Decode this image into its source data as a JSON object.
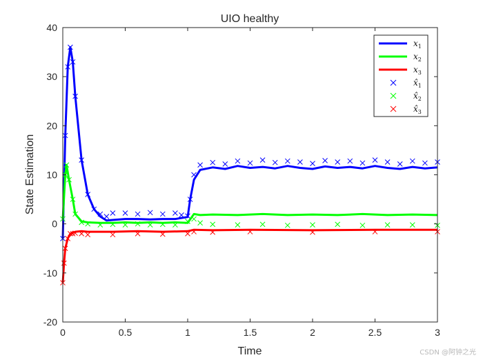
{
  "chart_data": {
    "type": "line",
    "title": "UIO healthy",
    "xlabel": "Time",
    "ylabel": "State Estimation",
    "xlim": [
      0,
      3
    ],
    "ylim": [
      -20,
      40
    ],
    "xticks": [
      0,
      0.5,
      1,
      1.5,
      2,
      2.5,
      3
    ],
    "xtick_labels": [
      "0",
      "0.5",
      "1",
      "1.5",
      "2",
      "2.5",
      "3"
    ],
    "yticks": [
      -20,
      -10,
      0,
      10,
      20,
      30,
      40
    ],
    "ytick_labels": [
      "-20",
      "-10",
      "0",
      "10",
      "20",
      "30",
      "40"
    ],
    "legend_location": "top-right",
    "series": [
      {
        "name": "x1",
        "label_base": "x",
        "label_sub": "1",
        "style": "line",
        "color": "#0000ff",
        "x": [
          0,
          0.02,
          0.04,
          0.06,
          0.08,
          0.1,
          0.15,
          0.2,
          0.25,
          0.3,
          0.35,
          0.4,
          0.5,
          0.6,
          0.7,
          0.8,
          0.9,
          0.95,
          1.0,
          1.02,
          1.05,
          1.1,
          1.2,
          1.3,
          1.4,
          1.5,
          1.6,
          1.7,
          1.8,
          1.9,
          2.0,
          2.1,
          2.2,
          2.3,
          2.4,
          2.5,
          2.6,
          2.7,
          2.8,
          2.9,
          3.0
        ],
        "y": [
          -3,
          18,
          32,
          36,
          33,
          26,
          13,
          6,
          3,
          1.5,
          0.7,
          0.8,
          1.0,
          1.0,
          0.9,
          1.0,
          1.0,
          1.2,
          1.4,
          5,
          9,
          11,
          11.5,
          11.2,
          11.8,
          11.4,
          11.6,
          11.3,
          11.8,
          11.4,
          11.2,
          11.7,
          11.4,
          11.6,
          11.3,
          11.8,
          11.4,
          11.2,
          11.6,
          11.3,
          11.5
        ]
      },
      {
        "name": "x2",
        "label_base": "x",
        "label_sub": "2",
        "style": "line",
        "color": "#00ff00",
        "x": [
          0,
          0.02,
          0.03,
          0.05,
          0.08,
          0.1,
          0.15,
          0.2,
          0.3,
          0.4,
          0.5,
          0.6,
          0.7,
          0.8,
          0.9,
          1.0,
          1.05,
          1.1,
          1.2,
          1.4,
          1.6,
          1.8,
          2.0,
          2.2,
          2.4,
          2.6,
          2.8,
          3.0
        ],
        "y": [
          1,
          10,
          12,
          9,
          5,
          2,
          0.5,
          0.3,
          0.2,
          0.2,
          0.3,
          0.2,
          0.3,
          0.2,
          0.3,
          0.2,
          2,
          1.8,
          1.9,
          1.8,
          2.0,
          1.8,
          1.9,
          1.8,
          2.0,
          1.8,
          1.9,
          1.8
        ]
      },
      {
        "name": "x3",
        "label_base": "x",
        "label_sub": "3",
        "style": "line",
        "color": "#ff0000",
        "x": [
          0,
          0.01,
          0.02,
          0.04,
          0.06,
          0.08,
          0.1,
          0.15,
          0.2,
          0.4,
          0.6,
          0.8,
          1.0,
          1.05,
          1.2,
          1.5,
          2.0,
          2.5,
          3.0
        ],
        "y": [
          -12,
          -8,
          -5,
          -3,
          -2,
          -1.8,
          -1.6,
          -1.5,
          -1.6,
          -1.6,
          -1.5,
          -1.6,
          -1.5,
          -1.2,
          -1.3,
          -1.2,
          -1.3,
          -1.2,
          -1.2
        ]
      },
      {
        "name": "x1 hat",
        "label_base": "x̂",
        "label_sub": "1",
        "style": "marker",
        "color": "#0000ff",
        "x": [
          0,
          0.02,
          0.04,
          0.06,
          0.08,
          0.1,
          0.15,
          0.2,
          0.25,
          0.3,
          0.35,
          0.4,
          0.5,
          0.6,
          0.7,
          0.8,
          0.9,
          0.95,
          1.0,
          1.02,
          1.05,
          1.1,
          1.2,
          1.3,
          1.4,
          1.5,
          1.6,
          1.7,
          1.8,
          1.9,
          2.0,
          2.1,
          2.2,
          2.3,
          2.4,
          2.5,
          2.6,
          2.7,
          2.8,
          2.9,
          3.0
        ],
        "y": [
          -3,
          18,
          32,
          36,
          33,
          26,
          13,
          6,
          3,
          2,
          1.5,
          2.2,
          2.2,
          2.0,
          2.3,
          2.0,
          2.2,
          1.8,
          1.6,
          5,
          10,
          12,
          12.5,
          12.2,
          12.8,
          12.4,
          13.0,
          12.5,
          12.8,
          12.6,
          12.3,
          12.9,
          12.6,
          12.8,
          12.4,
          13.0,
          12.6,
          12.2,
          12.8,
          12.4,
          12.6
        ]
      },
      {
        "name": "x2 hat",
        "label_base": "x̂",
        "label_sub": "2",
        "style": "marker",
        "color": "#00ff00",
        "x": [
          0,
          0.02,
          0.03,
          0.05,
          0.08,
          0.1,
          0.15,
          0.2,
          0.3,
          0.4,
          0.5,
          0.6,
          0.7,
          0.8,
          0.9,
          1.0,
          1.05,
          1.1,
          1.2,
          1.4,
          1.6,
          1.8,
          2.0,
          2.2,
          2.4,
          2.6,
          2.8,
          3.0
        ],
        "y": [
          1,
          10,
          12,
          9,
          5,
          2,
          0.3,
          0.0,
          -0.2,
          -0.1,
          -0.2,
          0.0,
          -0.2,
          -0.1,
          -0.2,
          0.5,
          1.0,
          0.2,
          -0.1,
          -0.2,
          -0.1,
          -0.3,
          -0.2,
          -0.1,
          -0.3,
          -0.2,
          -0.2,
          -0.3
        ]
      },
      {
        "name": "x3 hat",
        "label_base": "x̂",
        "label_sub": "3",
        "style": "marker",
        "color": "#ff0000",
        "x": [
          0,
          0.01,
          0.02,
          0.04,
          0.06,
          0.08,
          0.1,
          0.15,
          0.2,
          0.4,
          0.6,
          0.8,
          1.0,
          1.05,
          1.2,
          1.5,
          2.0,
          2.5,
          3.0
        ],
        "y": [
          -12,
          -8,
          -5,
          -3,
          -2,
          -2.0,
          -1.9,
          -2.0,
          -2.2,
          -2.2,
          -2.0,
          -2.1,
          -2.0,
          -1.6,
          -1.7,
          -1.6,
          -1.7,
          -1.6,
          -1.6
        ]
      }
    ]
  },
  "watermark": "CSDN @阿钟之光"
}
